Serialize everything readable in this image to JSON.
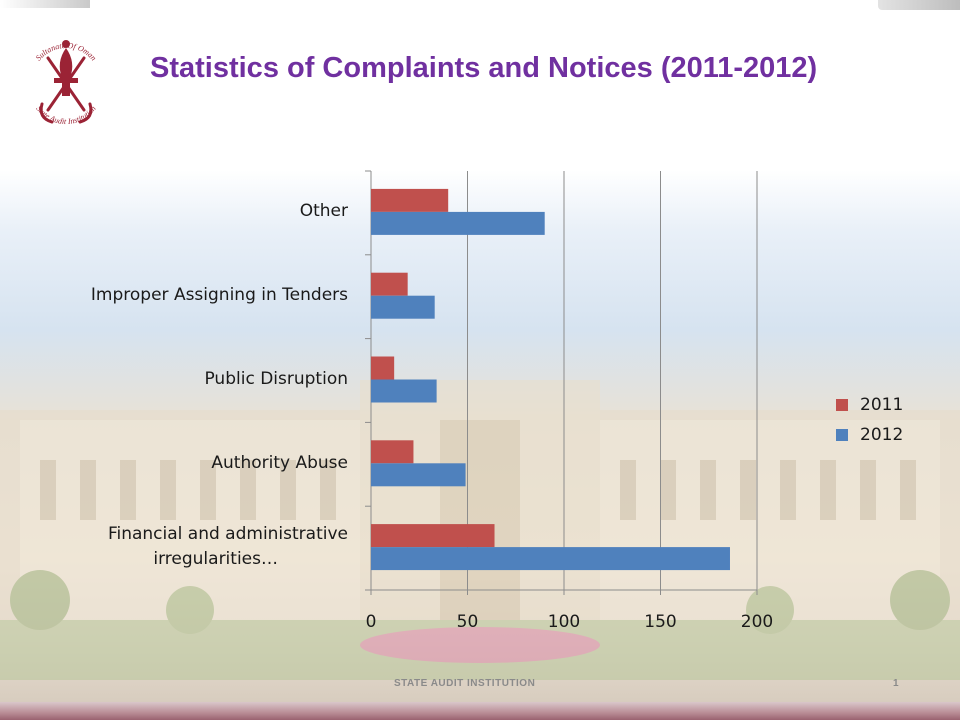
{
  "slide": {
    "title": "Statistics of Complaints and Notices (2011-2012)",
    "footer_text": "STATE AUDIT INSTITUTION",
    "page_number": "1",
    "logo": {
      "top_text": "Sultanate Of Oman",
      "bottom_text": "State Audit Institution",
      "color": "#9b2335"
    }
  },
  "chart_data": {
    "type": "bar",
    "orientation": "horizontal",
    "title": "",
    "xlabel": "",
    "ylabel": "",
    "categories": [
      "Financial and administrative irregularities…",
      "Authority Abuse",
      "Public Disruption",
      "Improper Assigning in Tenders",
      "Other"
    ],
    "category_labels": [
      [
        "Financial and administrative",
        "irregularities…"
      ],
      [
        "Authority Abuse"
      ],
      [
        "Public Disruption"
      ],
      [
        "Improper Assigning in Tenders"
      ],
      [
        "Other"
      ]
    ],
    "series": [
      {
        "name": "2011",
        "color": "#c0504d",
        "values": [
          64,
          22,
          12,
          19,
          40
        ]
      },
      {
        "name": "2012",
        "color": "#4f81bd",
        "values": [
          186,
          49,
          34,
          33,
          90
        ]
      }
    ],
    "xlim": [
      0,
      200
    ],
    "xticks": [
      0,
      50,
      100,
      150,
      200
    ],
    "xtick_labels": [
      "0",
      "50",
      "100",
      "150",
      "200"
    ],
    "grid": true,
    "legend_position": "right"
  }
}
